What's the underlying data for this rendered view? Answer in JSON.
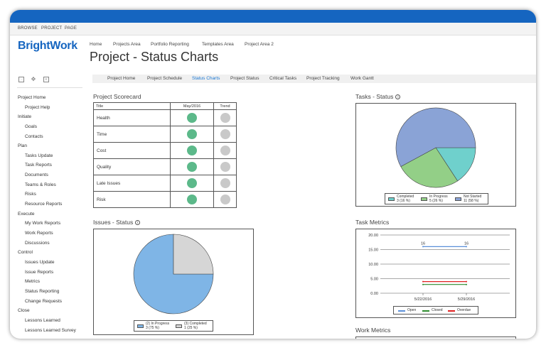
{
  "ribbon": {
    "browse": "BROWSE",
    "project": "PROJECT",
    "page": "PAGE"
  },
  "logo": "BrightWork",
  "breadcrumbs": [
    "Home",
    "Projects Area",
    "Portfolio Reporting",
    "Templates Area",
    "Project Area 2"
  ],
  "page_title": "Project - Status Charts",
  "sidebar": {
    "items": [
      "Project Home",
      "Project Help",
      "Initiate",
      "Goals",
      "Contacts",
      "Plan",
      "Tasks Update",
      "Task Reports",
      "Documents",
      "Teams & Roles",
      "Risks",
      "Resource Reports",
      "Execute",
      "My Work Reports",
      "Work Reports",
      "Discussions",
      "Control",
      "Issues Update",
      "Issue Reports",
      "Metrics",
      "Status Reporting",
      "Change Requests",
      "Close",
      "Lessons Learned",
      "Lessons Learned Survey"
    ]
  },
  "tabs": [
    "Project Home",
    "Project Schedule",
    "Status Charts",
    "Project Status",
    "Critical Tasks",
    "Project Tracking",
    "Work Gantt"
  ],
  "scorecard": {
    "title": "Project Scorecard",
    "headers": [
      "Title",
      "May/2016",
      "Trend"
    ],
    "rows": [
      "Health",
      "Time",
      "Cost",
      "Quality",
      "Late Issues",
      "Risk"
    ]
  },
  "tasks_status": {
    "title": "Tasks - Status",
    "legend": [
      {
        "line1": "Completed",
        "line2": "3 (16 %)",
        "color": "#6fd0cc"
      },
      {
        "line1": "In Progress",
        "line2": "5 (26 %)",
        "color": "#93cf87"
      },
      {
        "line1": "Not Started",
        "line2": "11 (58 %)",
        "color": "#8aa3d6"
      }
    ]
  },
  "issues_status": {
    "title": "Issues - Status",
    "legend": [
      {
        "line1": "(2) In Progress",
        "line2": "3 (75 %)",
        "color": "#7fb5e6"
      },
      {
        "line1": "(3) Completed",
        "line2": "1 (25 %)",
        "color": "#d6d6d6"
      }
    ]
  },
  "task_metrics": {
    "title": "Task Metrics",
    "yticks": [
      "20.00",
      "15.00",
      "10.00",
      "5.00",
      "0.00"
    ],
    "xticks": [
      "5/22/2016",
      "5/29/2016"
    ],
    "point_labels": [
      "16",
      "16"
    ],
    "legend": [
      {
        "name": "Open",
        "color": "#5b8fd9"
      },
      {
        "name": "Closed",
        "color": "#2e8b2e"
      },
      {
        "name": "Overdue",
        "color": "#e02020"
      }
    ]
  },
  "work_metrics": {
    "title": "Work Metrics"
  },
  "chart_data": [
    {
      "type": "pie",
      "title": "Tasks - Status",
      "categories": [
        "Completed",
        "In Progress",
        "Not Started"
      ],
      "values": [
        3,
        5,
        11
      ]
    },
    {
      "type": "pie",
      "title": "Issues - Status",
      "categories": [
        "(2) In Progress",
        "(3) Completed"
      ],
      "values": [
        3,
        1
      ]
    },
    {
      "type": "line",
      "title": "Task Metrics",
      "x": [
        "5/22/2016",
        "5/29/2016"
      ],
      "series": [
        {
          "name": "Open",
          "values": [
            16,
            16
          ]
        },
        {
          "name": "Closed",
          "values": [
            3,
            3
          ]
        },
        {
          "name": "Overdue",
          "values": [
            4,
            4
          ]
        }
      ],
      "ylim": [
        0,
        20
      ]
    }
  ]
}
